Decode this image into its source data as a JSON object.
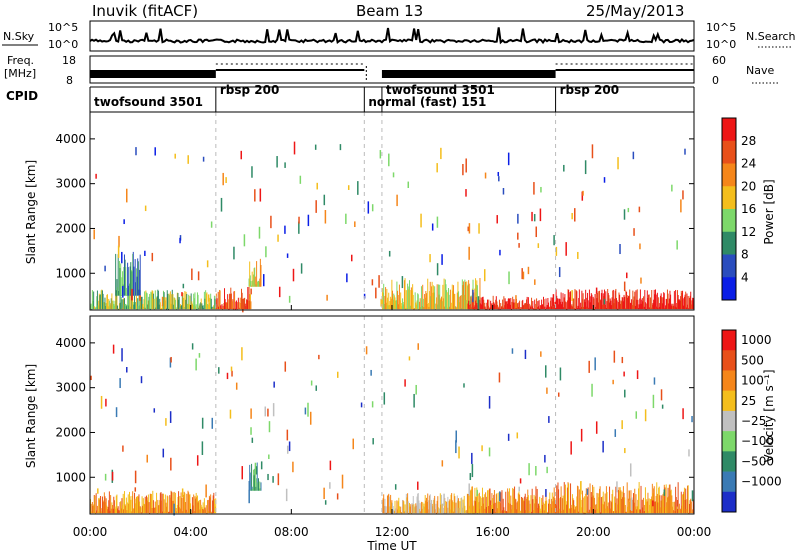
{
  "header": {
    "station": "Inuvik (fitACF)",
    "beam": "Beam 13",
    "date": "25/May/2013"
  },
  "panels": {
    "nsky_label": "N.Sky",
    "nsky_ticks": [
      "10^5",
      "10^0"
    ],
    "nsearch_label": "N.Search",
    "nsearch_ticks": [
      "10^5",
      "10^0"
    ],
    "freq_label": "Freq.",
    "freq_unit": "[MHz]",
    "freq_ticks": [
      "18",
      "8"
    ],
    "nave_label": "Nave",
    "nave_ticks": [
      "60",
      "0"
    ],
    "cpid_label": "CPID"
  },
  "cpid_modes": [
    {
      "label": "twofsound 3501",
      "start_hour": 0
    },
    {
      "label": "rbsp 200",
      "start_hour": 5.0
    },
    {
      "label": "normal (fast) 151",
      "start_hour": 10.9
    },
    {
      "label": "twofsound 3501",
      "start_hour": 11.6
    },
    {
      "label": "rbsp 200",
      "start_hour": 18.5
    }
  ],
  "time_axis": {
    "label": "Time UT",
    "ticks": [
      "00:00",
      "04:00",
      "08:00",
      "12:00",
      "16:00",
      "20:00",
      "00:00"
    ]
  },
  "chart_data": [
    {
      "type": "heatmap",
      "title": "",
      "xlabel": "Time UT",
      "ylabel": "Slant Range [km]",
      "xlim": [
        0,
        24
      ],
      "ylim": [
        180,
        4600
      ],
      "yticks": [
        "1000",
        "2000",
        "3000",
        "4000"
      ],
      "colorbar": {
        "label": "Power [dB]",
        "ticks": [
          "4",
          "8",
          "12",
          "16",
          "20",
          "24",
          "28"
        ],
        "colors": [
          "#0a1ee6",
          "#2a4dbe",
          "#2f8a66",
          "#7dd86a",
          "#f4be1c",
          "#f5861a",
          "#e8501a",
          "#ee1616"
        ]
      },
      "regions": [
        {
          "t0": 0.0,
          "t1": 5.0,
          "r0": 200,
          "r1": 650,
          "level": 3
        },
        {
          "t0": 1.0,
          "t1": 2.0,
          "r0": 500,
          "r1": 1500,
          "level": 2
        },
        {
          "t0": 6.3,
          "t1": 6.8,
          "r0": 700,
          "r1": 1350,
          "level": 4
        },
        {
          "t0": 5.0,
          "t1": 6.4,
          "r0": 200,
          "r1": 700,
          "level": 6
        },
        {
          "t0": 11.6,
          "t1": 15.5,
          "r0": 200,
          "r1": 900,
          "level": 4
        },
        {
          "t0": 15.0,
          "t1": 18.5,
          "r0": 200,
          "r1": 500,
          "level": 7
        },
        {
          "t0": 18.5,
          "t1": 24.0,
          "r0": 200,
          "r1": 650,
          "level": 7
        }
      ]
    },
    {
      "type": "heatmap",
      "title": "",
      "xlabel": "Time UT",
      "ylabel": "Slant Range [km]",
      "xlim": [
        0,
        24
      ],
      "ylim": [
        180,
        4600
      ],
      "yticks": [
        "1000",
        "2000",
        "3000",
        "4000"
      ],
      "colorbar": {
        "label": "Velocity [m s⁻¹]",
        "ticks": [
          "1000",
          "500",
          "100",
          "25",
          "−25",
          "−100",
          "−500",
          "−1000"
        ],
        "colors": [
          "#1c2ec8",
          "#3a7ab4",
          "#2f8a66",
          "#7dd86a",
          "#c0c0c0",
          "#f4be1c",
          "#f5861a",
          "#e8501a",
          "#ee1616"
        ]
      },
      "regions": [
        {
          "t0": 0.0,
          "t1": 5.0,
          "r0": 200,
          "r1": 700,
          "level": 6
        },
        {
          "t0": 6.3,
          "t1": 6.8,
          "r0": 700,
          "r1": 1350,
          "level": 2
        },
        {
          "t0": 11.6,
          "t1": 15.5,
          "r0": 200,
          "r1": 650,
          "level": 5
        },
        {
          "t0": 15.0,
          "t1": 18.5,
          "r0": 200,
          "r1": 800,
          "level": 6
        },
        {
          "t0": 18.5,
          "t1": 24.0,
          "r0": 200,
          "r1": 900,
          "level": 6
        }
      ]
    }
  ]
}
